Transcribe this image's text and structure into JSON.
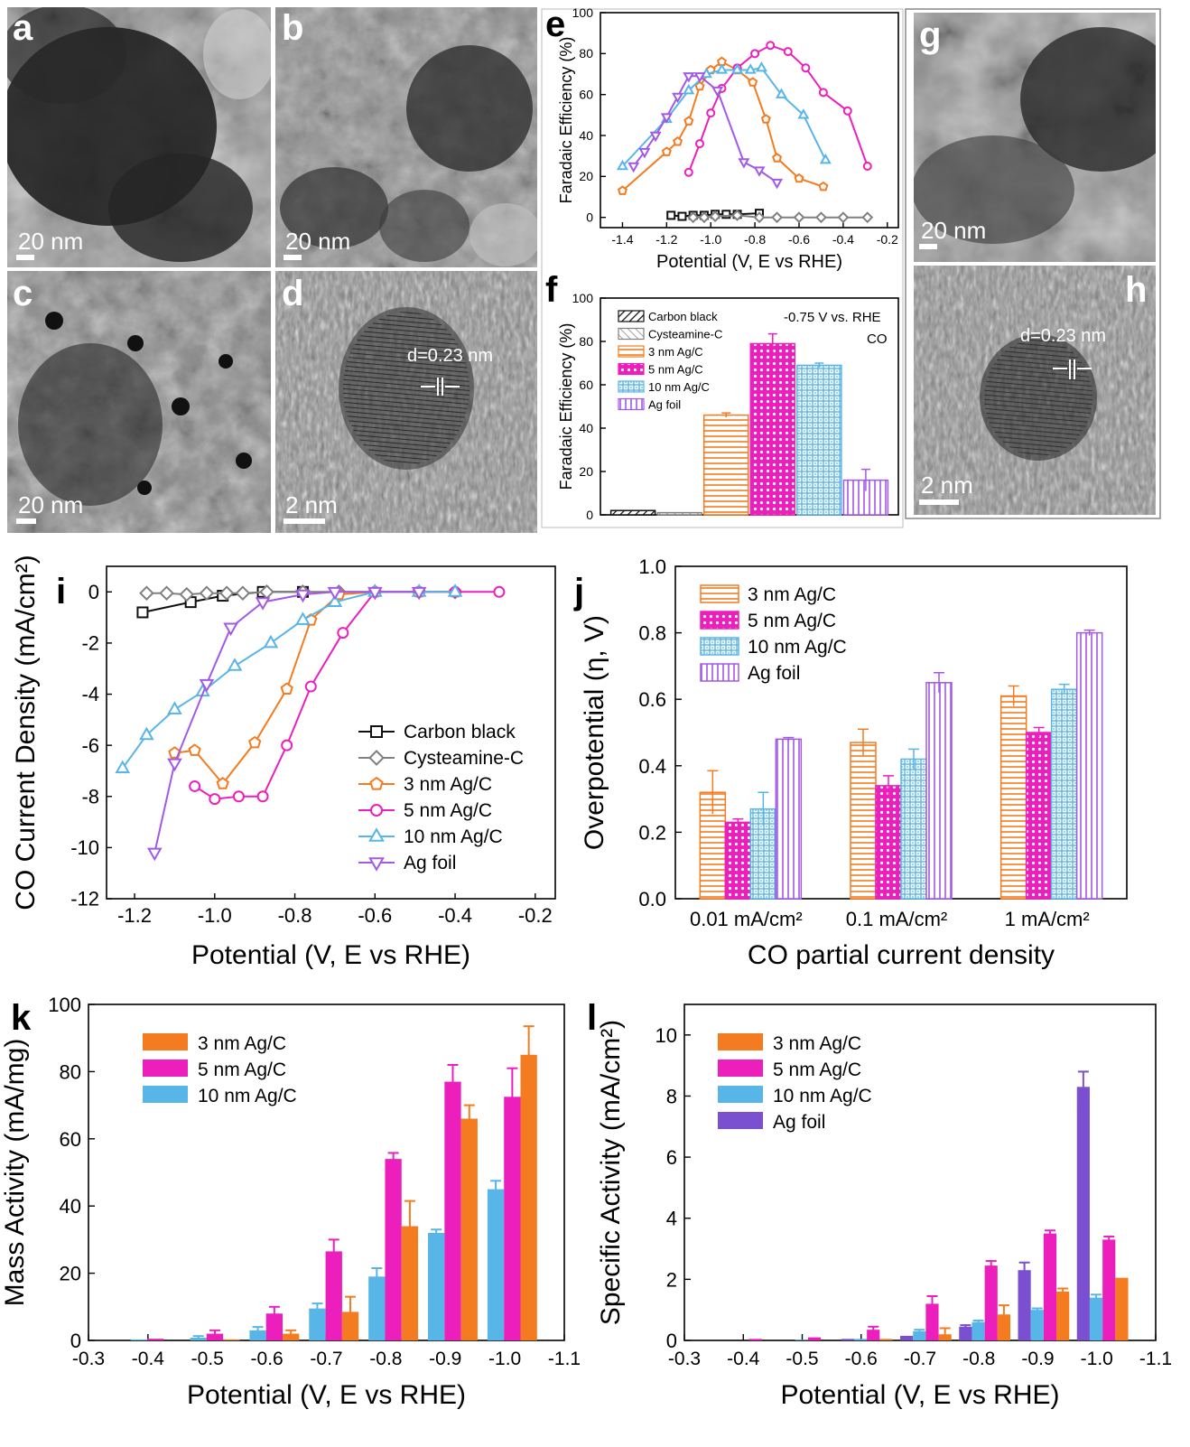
{
  "panel_letters": {
    "a": "a",
    "b": "b",
    "c": "c",
    "d": "d",
    "e": "e",
    "f": "f",
    "g": "g",
    "h": "h",
    "i": "i",
    "j": "j",
    "k": "k",
    "l": "l"
  },
  "micrographs": {
    "a": {
      "scale": "20 nm"
    },
    "b": {
      "scale": "20 nm"
    },
    "c": {
      "scale": "20 nm"
    },
    "d": {
      "scale": "2 nm",
      "annotation": "d=0.23 nm"
    },
    "g": {
      "scale": "20 nm"
    },
    "h": {
      "scale": "2 nm",
      "annotation": "d=0.23 nm"
    }
  },
  "colors": {
    "carbon": "#111111",
    "cyst": "#808080",
    "ag3": "#f47b20",
    "ag5": "#ec1fbd",
    "ag10": "#58b5e8",
    "agfoil": "#a259e6",
    "agfoil_l": "#7a4fd0"
  },
  "chart_data": [
    {
      "id": "e",
      "type": "line",
      "xlabel": "Potential (V, E vs RHE)",
      "ylabel": "Faradaic Efficiency (%)",
      "xlim": [
        -1.5,
        -0.15
      ],
      "ylim": [
        -5,
        100
      ],
      "xticks": [
        "-1.4",
        "-1.2",
        "-1.0",
        "-0.8",
        "-0.6",
        "-0.4",
        "-0.2"
      ],
      "yticks": [
        "0",
        "20",
        "40",
        "60",
        "80",
        "100"
      ],
      "series": [
        {
          "name": "Carbon black",
          "color": "#111111",
          "marker": "square",
          "x": [
            -1.18,
            -1.13,
            -1.08,
            -1.03,
            -0.98,
            -0.93,
            -0.88,
            -0.78
          ],
          "y": [
            1,
            0.5,
            1,
            1,
            1.5,
            1.5,
            1.5,
            2
          ]
        },
        {
          "name": "Cysteamine-C",
          "color": "#808080",
          "marker": "diamond",
          "x": [
            -1.08,
            -1.03,
            -0.98,
            -0.88,
            -0.78,
            -0.7,
            -0.6,
            -0.5,
            -0.4,
            -0.29
          ],
          "y": [
            0,
            0,
            0.5,
            1,
            0,
            0,
            0,
            0,
            0,
            0
          ]
        },
        {
          "name": "3 nm Ag/C",
          "color": "#f47b20",
          "marker": "pentagon",
          "x": [
            -1.4,
            -1.2,
            -1.15,
            -1.1,
            -1.05,
            -1.0,
            -0.95,
            -0.88,
            -0.81,
            -0.75,
            -0.7,
            -0.6,
            -0.49
          ],
          "y": [
            13,
            32,
            37,
            47,
            64,
            72,
            76,
            72,
            66,
            48,
            29,
            19,
            15
          ]
        },
        {
          "name": "5 nm Ag/C",
          "color": "#ec1fbd",
          "marker": "circle",
          "x": [
            -1.1,
            -1.05,
            -1.0,
            -0.95,
            -0.88,
            -0.8,
            -0.73,
            -0.65,
            -0.57,
            -0.49,
            -0.38,
            -0.29
          ],
          "y": [
            22,
            36,
            51,
            63,
            73,
            80,
            84,
            81,
            73,
            61,
            52,
            25
          ],
          "errors": [
            0,
            0,
            0,
            0,
            0,
            0,
            0,
            0,
            0,
            0,
            0,
            0
          ]
        },
        {
          "name": "10 nm Ag/C",
          "color": "#58b5e8",
          "marker": "triangle",
          "x": [
            -1.4,
            -1.2,
            -1.1,
            -1.02,
            -0.95,
            -0.88,
            -0.82,
            -0.77,
            -0.68,
            -0.58,
            -0.48
          ],
          "y": [
            25,
            48,
            62,
            70,
            72,
            72,
            72,
            73,
            60,
            50,
            28
          ]
        },
        {
          "name": "Ag foil",
          "color": "#a259e6",
          "marker": "invtriangle",
          "x": [
            -1.35,
            -1.3,
            -1.25,
            -1.2,
            -1.15,
            -1.1,
            -1.05,
            -0.97,
            -0.85,
            -0.78,
            -0.7
          ],
          "y": [
            25,
            32,
            40,
            49,
            59,
            69,
            69,
            62,
            27,
            23,
            17
          ]
        }
      ]
    },
    {
      "id": "f",
      "type": "bar",
      "xlabel": "",
      "ylabel": "Faradaic Efficiency (%)",
      "ylim": [
        0,
        100
      ],
      "yticks": [
        "0",
        "20",
        "40",
        "60",
        "80",
        "100"
      ],
      "annotation1": "-0.75 V vs. RHE",
      "annotation2": "CO",
      "categories": [
        "Carbon black",
        "Cysteamine-C",
        "3 nm Ag/C",
        "5 nm Ag/C",
        "10 nm Ag/C",
        "Ag foil"
      ],
      "values": [
        2,
        1,
        46,
        79,
        69,
        16
      ],
      "errors": [
        0,
        0,
        1,
        4.5,
        1,
        5
      ],
      "colors": [
        "#111111",
        "#808080",
        "#f47b20",
        "#ec1fbd",
        "#58b5e8",
        "#a259e6"
      ],
      "patterns": [
        "diag",
        "diag2",
        "hstripe",
        "cross",
        "grid",
        "vstripe"
      ]
    },
    {
      "id": "i",
      "type": "line",
      "xlabel": "Potential (V, E vs RHE)",
      "ylabel": "CO Current Density (mA/cm²)",
      "xlim": [
        -1.27,
        -0.15
      ],
      "ylim": [
        -12,
        1
      ],
      "xticks": [
        "-1.2",
        "-1.0",
        "-0.8",
        "-0.6",
        "-0.4",
        "-0.2"
      ],
      "yticks": [
        "-12",
        "-10",
        "-8",
        "-6",
        "-4",
        "-2",
        "0"
      ],
      "series": [
        {
          "name": "Carbon black",
          "color": "#111111",
          "marker": "square",
          "x": [
            -1.18,
            -1.06,
            -0.98,
            -0.88,
            -0.78
          ],
          "y": [
            -0.8,
            -0.4,
            -0.15,
            0,
            0
          ]
        },
        {
          "name": "Cysteamine-C",
          "color": "#808080",
          "marker": "diamond",
          "x": [
            -1.17,
            -1.12,
            -1.07,
            -1.02,
            -0.97,
            -0.93,
            -0.87,
            -0.78,
            -0.69,
            -0.6,
            -0.49,
            -0.4
          ],
          "y": [
            -0.05,
            -0.05,
            -0.1,
            -0.05,
            -0.05,
            -0.05,
            0,
            0,
            0,
            0,
            0,
            0
          ]
        },
        {
          "name": "3 nm Ag/C",
          "color": "#f47b20",
          "marker": "pentagon",
          "x": [
            -1.1,
            -1.05,
            -0.98,
            -0.9,
            -0.82,
            -0.76,
            -0.69,
            -0.6,
            -0.49,
            -0.4
          ],
          "y": [
            -6.3,
            -6.2,
            -7.5,
            -5.9,
            -3.8,
            -1.1,
            -0.1,
            0,
            0,
            0
          ]
        },
        {
          "name": "5 nm Ag/C",
          "color": "#ec1fbd",
          "marker": "circle",
          "x": [
            -1.05,
            -1.0,
            -0.94,
            -0.88,
            -0.82,
            -0.76,
            -0.68,
            -0.6,
            -0.49,
            -0.4,
            -0.29
          ],
          "y": [
            -7.6,
            -8.1,
            -8.0,
            -8.0,
            -6.0,
            -3.7,
            -1.6,
            0,
            0,
            0,
            0
          ]
        },
        {
          "name": "10 nm Ag/C",
          "color": "#58b5e8",
          "marker": "triangle",
          "x": [
            -1.23,
            -1.17,
            -1.1,
            -1.03,
            -0.95,
            -0.86,
            -0.78,
            -0.7,
            -0.6,
            -0.49,
            -0.4
          ],
          "y": [
            -6.9,
            -5.6,
            -4.6,
            -3.9,
            -2.9,
            -2.0,
            -1.1,
            -0.4,
            0,
            0,
            0
          ]
        },
        {
          "name": "Ag foil",
          "color": "#a259e6",
          "marker": "invtriangle",
          "x": [
            -1.15,
            -1.1,
            -1.02,
            -0.96,
            -0.88,
            -0.78,
            -0.7,
            -0.6,
            -0.49
          ],
          "y": [
            -10.2,
            -6.7,
            -3.6,
            -1.4,
            -0.4,
            -0.1,
            0,
            0,
            0
          ]
        }
      ]
    },
    {
      "id": "j",
      "type": "bar",
      "xlabel": "CO partial current density",
      "ylabel": "Overpotential (η, V)",
      "ylim": [
        0,
        1.0
      ],
      "yticks": [
        "0.0",
        "0.2",
        "0.4",
        "0.6",
        "0.8",
        "1.0"
      ],
      "categories": [
        "0.01 mA/cm²",
        "0.1 mA/cm²",
        "1 mA/cm²"
      ],
      "series": [
        {
          "name": "3 nm Ag/C",
          "color": "#f47b20",
          "pattern": "hstripe",
          "values": [
            0.32,
            0.47,
            0.61
          ],
          "errors": [
            0.065,
            0.04,
            0.03
          ]
        },
        {
          "name": "5 nm Ag/C",
          "color": "#ec1fbd",
          "pattern": "cross",
          "values": [
            0.23,
            0.34,
            0.5
          ],
          "errors": [
            0.01,
            0.03,
            0.015
          ]
        },
        {
          "name": "10 nm Ag/C",
          "color": "#58b5e8",
          "pattern": "grid",
          "values": [
            0.27,
            0.42,
            0.63
          ],
          "errors": [
            0.05,
            0.03,
            0.015
          ]
        },
        {
          "name": "Ag foil",
          "color": "#a259e6",
          "pattern": "vstripe",
          "values": [
            0.48,
            0.65,
            0.8
          ],
          "errors": [
            0.005,
            0.03,
            0.008
          ]
        }
      ]
    },
    {
      "id": "k",
      "type": "bar",
      "xlabel": "Potential (V, E vs RHE)",
      "ylabel": "Mass Activity (mA/mg)",
      "xlim": [
        -0.3,
        -1.1
      ],
      "ylim": [
        0,
        100
      ],
      "xticks": [
        "-0.3",
        "-0.4",
        "-0.5",
        "-0.6",
        "-0.7",
        "-0.8",
        "-0.9",
        "-1.0",
        "-1.1"
      ],
      "yticks": [
        "0",
        "20",
        "40",
        "60",
        "80",
        "100"
      ],
      "potentials": [
        -0.4,
        -0.5,
        -0.6,
        -0.7,
        -0.8,
        -0.9,
        -1.0
      ],
      "series": [
        {
          "name": "3 nm Ag/C",
          "color": "#f47b20",
          "values": [
            0,
            0.3,
            2,
            8.5,
            34,
            66,
            85
          ],
          "errors": [
            0,
            0,
            1,
            4.5,
            7.5,
            4,
            8.5
          ]
        },
        {
          "name": "5 nm Ag/C",
          "color": "#ec1fbd",
          "values": [
            0.5,
            2,
            8,
            26.5,
            54,
            77,
            72.5
          ],
          "errors": [
            0,
            1,
            2,
            3.5,
            1.8,
            5,
            8.5
          ]
        },
        {
          "name": "10 nm Ag/C",
          "color": "#58b5e8",
          "values": [
            0.3,
            0.8,
            3,
            9.5,
            19,
            32,
            45
          ],
          "errors": [
            0,
            0.5,
            1,
            1.5,
            2.5,
            1,
            2.5
          ]
        }
      ]
    },
    {
      "id": "l",
      "type": "bar",
      "xlabel": "Potential (V, E vs RHE)",
      "ylabel": "Specific Activity (mA/cm²)",
      "xlim": [
        -0.3,
        -1.1
      ],
      "ylim": [
        0,
        11
      ],
      "xticks": [
        "-0.3",
        "-0.4",
        "-0.5",
        "-0.6",
        "-0.7",
        "-0.8",
        "-0.9",
        "-1.0",
        "-1.1"
      ],
      "yticks": [
        "0",
        "2",
        "4",
        "6",
        "8",
        "10"
      ],
      "potentials": [
        -0.4,
        -0.5,
        -0.6,
        -0.7,
        -0.8,
        -0.9,
        -1.0
      ],
      "series": [
        {
          "name": "3 nm Ag/C",
          "color": "#f47b20",
          "values": [
            0,
            0,
            0.05,
            0.2,
            0.85,
            1.6,
            2.05
          ],
          "errors": [
            0,
            0,
            0,
            0.2,
            0.3,
            0.1,
            0
          ]
        },
        {
          "name": "5 nm Ag/C",
          "color": "#ec1fbd",
          "values": [
            0.05,
            0.1,
            0.35,
            1.2,
            2.45,
            3.5,
            3.3
          ],
          "errors": [
            0,
            0,
            0.1,
            0.25,
            0.15,
            0.1,
            0.1
          ]
        },
        {
          "name": "10 nm Ag/C",
          "color": "#58b5e8",
          "values": [
            0,
            0.02,
            0.05,
            0.3,
            0.6,
            1.0,
            1.4
          ],
          "errors": [
            0,
            0,
            0,
            0.05,
            0.05,
            0.05,
            0.1
          ]
        },
        {
          "name": "Ag foil",
          "color": "#7a4fd0",
          "values": [
            0,
            0,
            0.05,
            0.15,
            0.45,
            2.3,
            8.3
          ],
          "errors": [
            0,
            0,
            0,
            0,
            0.05,
            0.25,
            0.5
          ]
        }
      ]
    }
  ]
}
